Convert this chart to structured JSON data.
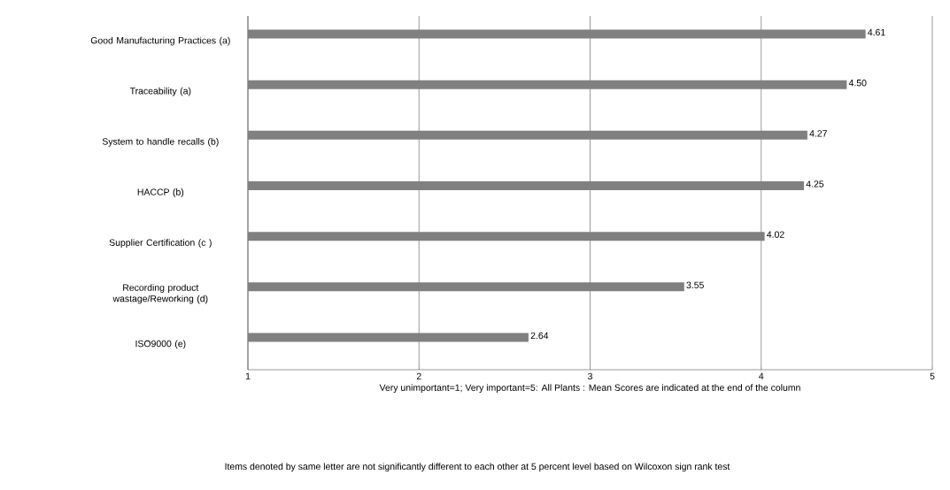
{
  "chart_data": {
    "type": "bar",
    "orientation": "horizontal",
    "categories": [
      "Good Manufacturing Practices (a)",
      "Traceability (a)",
      "System to handle recalls (b)",
      "HACCP (b)",
      "Supplier Certification (c )",
      "Recording product wastage/Reworking (d)",
      "ISO9000 (e)"
    ],
    "values": [
      4.61,
      4.5,
      4.27,
      4.25,
      4.02,
      3.55,
      2.64
    ],
    "value_labels": [
      "4.61",
      "4.50",
      "4.27",
      "4.25",
      "4.02",
      "3.55",
      "2.64"
    ],
    "color": "#808080",
    "xlim": [
      1,
      5
    ],
    "xticks": [
      1,
      2,
      3,
      4,
      5
    ],
    "grid": "x",
    "xlabel": "Very unimportant=1; Very important=5: All Plants  : Mean Scores are indicated at the end of the column",
    "annotations": [
      "Items denoted by same letter are not significantly different to each other at 5 percent level based on Wilcoxon sign rank test"
    ]
  }
}
